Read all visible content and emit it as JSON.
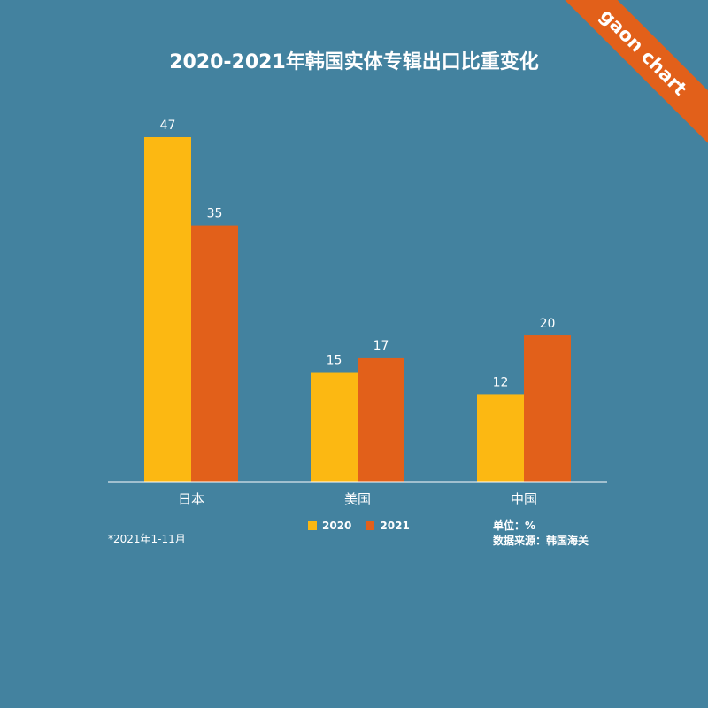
{
  "chart_data": {
    "type": "bar",
    "title": "2020-2021年韩国实体专辑出口比重变化",
    "categories": [
      "日本",
      "美国",
      "中国"
    ],
    "series": [
      {
        "name": "2020",
        "values": [
          47,
          15,
          12
        ],
        "color": "#fcb812"
      },
      {
        "name": "2021",
        "values": [
          35,
          17,
          20
        ],
        "color": "#e2601a"
      }
    ],
    "ylim": [
      0,
      47
    ],
    "xlabel": "",
    "ylabel": "",
    "grid": false,
    "legend": "bottom-center"
  },
  "footnote": "*2021年1-11月",
  "unit": "单位：%",
  "source": "数据来源：韩国海关",
  "brand": "gaon chart",
  "colors": {
    "background": "#43829f",
    "axis": "#ffffff",
    "text": "#ffffff"
  }
}
